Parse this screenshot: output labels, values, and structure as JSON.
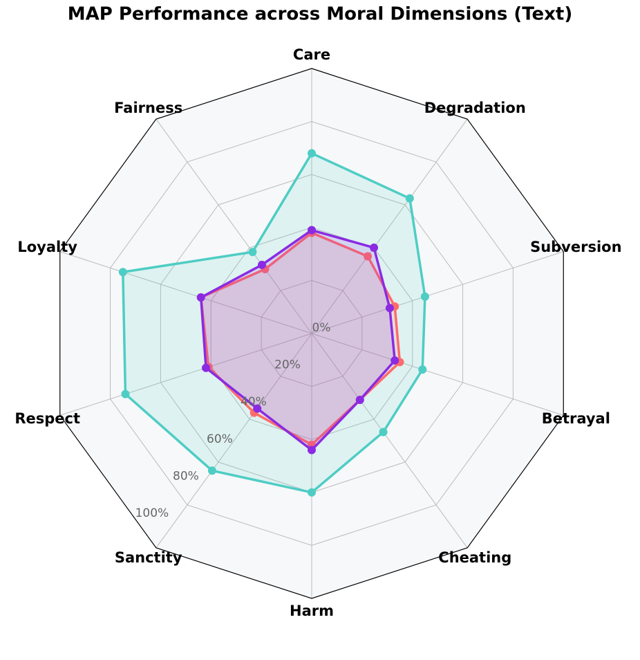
{
  "chart_data": {
    "type": "radar",
    "title": "MAP Performance across Moral Dimensions (Text)",
    "categories": [
      "Care",
      "Degradation",
      "Subversion",
      "Betrayal",
      "Cheating",
      "Harm",
      "Sanctity",
      "Respect",
      "Loyalty",
      "Fairness"
    ],
    "ylim": [
      0,
      100
    ],
    "yticks": [
      {
        "value": 0,
        "label": "0%"
      },
      {
        "value": 20,
        "label": "20%"
      },
      {
        "value": 40,
        "label": "40%"
      },
      {
        "value": 60,
        "label": "60%"
      },
      {
        "value": 80,
        "label": "80%"
      },
      {
        "value": 100,
        "label": "100%"
      }
    ],
    "grid": true,
    "series": [
      {
        "color": "#4ecdc4",
        "values": [
          68,
          63,
          45,
          44,
          46,
          60,
          64,
          74,
          75,
          38
        ]
      },
      {
        "color": "#ff6b6b",
        "values": [
          38,
          36,
          33,
          35,
          31,
          42,
          37,
          41,
          44,
          30
        ]
      },
      {
        "color": "#8a2be2",
        "values": [
          39,
          40,
          31,
          33,
          31,
          44,
          35,
          42,
          44,
          32
        ]
      }
    ]
  }
}
